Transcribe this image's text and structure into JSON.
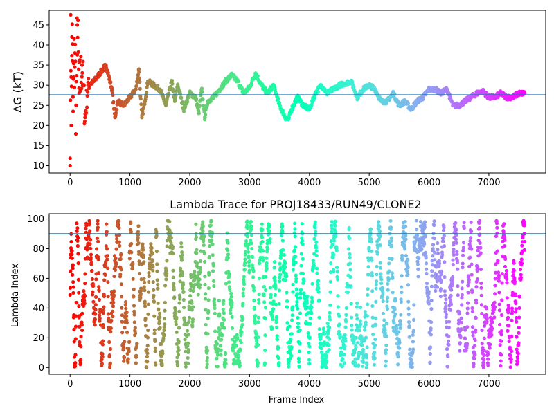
{
  "chart_data": [
    {
      "type": "scatter",
      "title": "",
      "xlabel": "",
      "ylabel": "ΔG (kT)",
      "xlim": [
        -350,
        7950
      ],
      "ylim": [
        8.2,
        48.6
      ],
      "xticks": [
        0,
        1000,
        2000,
        3000,
        4000,
        5000,
        6000,
        7000
      ],
      "yticks": [
        10,
        15,
        20,
        25,
        30,
        35,
        40,
        45
      ],
      "xtick_labels": [
        "0",
        "1000",
        "2000",
        "3000",
        "4000",
        "5000",
        "6000",
        "7000"
      ],
      "ytick_labels": [
        "10",
        "15",
        "20",
        "25",
        "30",
        "35",
        "40",
        "45"
      ],
      "hline": {
        "y": 27.6,
        "color": "#1f77b4"
      },
      "colormap": "rainbow (reversed: red at frame 0, violet at last frame)",
      "points_x": [
        0,
        10,
        20,
        30,
        40,
        50,
        60,
        80,
        100,
        120,
        150,
        200,
        250,
        300,
        400,
        500,
        600,
        700,
        750,
        800,
        900,
        1000,
        1100,
        1150,
        1200,
        1250,
        1300,
        1400,
        1500,
        1600,
        1700,
        1750,
        1800,
        1900,
        2000,
        2100,
        2150,
        2200,
        2250,
        2300,
        2400,
        2500,
        2600,
        2700,
        2800,
        2900,
        3000,
        3100,
        3200,
        3300,
        3400,
        3500,
        3600,
        3650,
        3700,
        3800,
        3900,
        4000,
        4100,
        4200,
        4300,
        4400,
        4500,
        4600,
        4700,
        4800,
        4900,
        5000,
        5100,
        5200,
        5300,
        5400,
        5500,
        5600,
        5700,
        5800,
        5900,
        6000,
        6100,
        6200,
        6300,
        6400,
        6500,
        6600,
        6700,
        6800,
        6900,
        7000,
        7100,
        7200,
        7300,
        7400,
        7500,
        7600
      ],
      "points_y": [
        10,
        47.5,
        20,
        42,
        36,
        23.5,
        32,
        38,
        25,
        45,
        28,
        35,
        22,
        30,
        31,
        33,
        35,
        29,
        22,
        26,
        25,
        27,
        29,
        34,
        22,
        26,
        31,
        30,
        29,
        25,
        31,
        26,
        30,
        24,
        28,
        27,
        23,
        29,
        22,
        26,
        27,
        29,
        31,
        32.5,
        31,
        28,
        29.5,
        33,
        30,
        28,
        30,
        25,
        22,
        21.5,
        24,
        27,
        25,
        24,
        28,
        30,
        28,
        29,
        30,
        30.5,
        31,
        27,
        29,
        30,
        29,
        26,
        26,
        28,
        25,
        26,
        24,
        26,
        27,
        29,
        29,
        28,
        29,
        25,
        25,
        26,
        27,
        28,
        28.5,
        27,
        27,
        28,
        27,
        27,
        28,
        28
      ]
    },
    {
      "type": "scatter",
      "title": "Lambda Trace for PROJ18433/RUN49/CLONE2",
      "xlabel": "Frame Index",
      "ylabel": "Lambda Index",
      "xlim": [
        -350,
        7950
      ],
      "ylim": [
        -4.5,
        103.5
      ],
      "xticks": [
        0,
        1000,
        2000,
        3000,
        4000,
        5000,
        6000,
        7000
      ],
      "yticks": [
        0,
        20,
        40,
        60,
        80,
        100
      ],
      "xtick_labels": [
        "0",
        "1000",
        "2000",
        "3000",
        "4000",
        "5000",
        "6000",
        "7000"
      ],
      "ytick_labels": [
        "0",
        "20",
        "40",
        "60",
        "80",
        "100"
      ],
      "hline": {
        "y": 90,
        "color": "#1f77b4"
      },
      "colormap": "rainbow (reversed: red at frame 0, violet at last frame)",
      "x_range": [
        0,
        7600
      ],
      "y_range": [
        0,
        99
      ],
      "description_pattern": "lambda index values spread across 0–99 for every frame, dense vertical bands"
    }
  ]
}
